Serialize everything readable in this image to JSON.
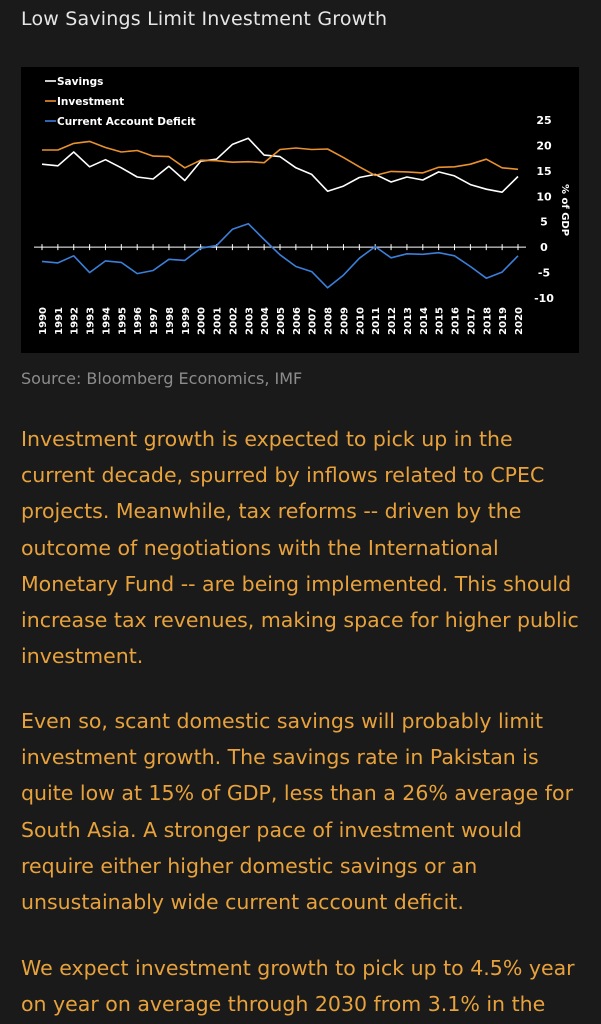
{
  "title": "Low Savings Limit Investment Growth",
  "source": "Source: Bloomberg Economics, IMF",
  "paragraphs": [
    "Investment growth is expected to pick up in the current decade, spurred by inflows related to CPEC projects. Meanwhile, tax reforms -- driven by the outcome of negotiations with the International Monetary Fund -- are being implemented. This should increase tax revenues, making space for higher public investment.",
    "Even so, scant domestic savings will probably limit investment growth. The savings rate in Pakistan is quite low at 15% of GDP, less than a 26% average for South Asia. A stronger pace of investment would require either higher domestic savings or an unsustainably wide current account deficit.",
    "We expect investment growth to pick up to 4.5% year on year on average through 2030 from 3.1% in the"
  ],
  "chart_data": {
    "type": "line",
    "ylabel": "% of GDP",
    "ylim": [
      -10,
      25
    ],
    "yticks": [
      25,
      20,
      15,
      10,
      5,
      0,
      -5,
      -10
    ],
    "x": [
      1990,
      1991,
      1992,
      1993,
      1994,
      1995,
      1996,
      1997,
      1998,
      1999,
      2000,
      2001,
      2002,
      2003,
      2004,
      2005,
      2006,
      2007,
      2008,
      2009,
      2010,
      2011,
      2012,
      2013,
      2014,
      2015,
      2016,
      2017,
      2018,
      2019,
      2020
    ],
    "legend_position": "top-left",
    "series": [
      {
        "name": "Savings",
        "color": "#ffffff",
        "values": [
          16.3,
          16.0,
          18.7,
          15.8,
          17.2,
          15.6,
          13.8,
          13.4,
          15.9,
          13.1,
          16.9,
          17.3,
          20.2,
          21.4,
          18.1,
          17.8,
          15.6,
          14.3,
          11.0,
          12.0,
          13.7,
          14.3,
          12.8,
          13.8,
          13.2,
          14.8,
          14.0,
          12.3,
          11.4,
          10.8,
          13.9
        ]
      },
      {
        "name": "Investment",
        "color": "#e8912e",
        "values": [
          19.1,
          19.1,
          20.4,
          20.8,
          19.6,
          18.7,
          19.0,
          17.9,
          17.8,
          15.6,
          17.1,
          17.0,
          16.7,
          16.8,
          16.6,
          19.2,
          19.5,
          19.2,
          19.3,
          17.6,
          15.8,
          14.1,
          14.9,
          14.8,
          14.6,
          15.7,
          15.8,
          16.3,
          17.3,
          15.6,
          15.3
        ]
      },
      {
        "name": "Current Account Deficit",
        "color": "#3b7fd9",
        "values": [
          -2.8,
          -3.1,
          -1.7,
          -5.0,
          -2.7,
          -3.0,
          -5.2,
          -4.6,
          -2.4,
          -2.6,
          -0.2,
          0.3,
          3.5,
          4.6,
          1.5,
          -1.5,
          -3.8,
          -4.8,
          -8.0,
          -5.5,
          -2.2,
          0.1,
          -2.1,
          -1.3,
          -1.4,
          -1.1,
          -1.7,
          -3.8,
          -6.1,
          -4.9,
          -1.7
        ]
      }
    ]
  }
}
